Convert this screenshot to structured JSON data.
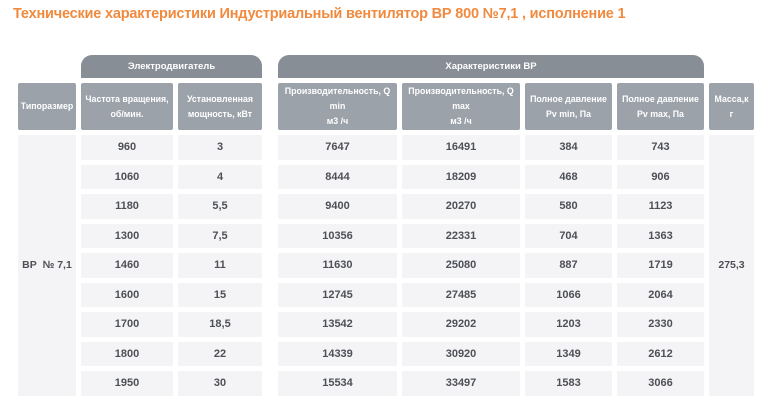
{
  "title": "Технические характеристики Индустриальный вентилятор ВР 800 №7,1 , исполнение 1",
  "colors": {
    "accent": "#f18a3e",
    "page_bg": "#ffffff",
    "group_header_bg": "#878e95",
    "column_header_bg": "#9ba2aa",
    "cell_bg": "#f4f4f6",
    "cell_text": "#4d5056"
  },
  "table": {
    "group_headers": {
      "electro": "Электродвигатель",
      "vr": "Характеристики ВР"
    },
    "column_headers": {
      "typosize": "Типоразмер",
      "freq": [
        "Частота вращения,",
        "об/мин."
      ],
      "power": [
        "Установленная",
        "мощность, кВт"
      ],
      "qmin": [
        "Производительность, Q min",
        "м3 /ч"
      ],
      "qmax": [
        "Производительность, Q max",
        "м3 /ч"
      ],
      "pvmin": [
        "Полное давление",
        "Pv min, Па"
      ],
      "pvmax": [
        "Полное давление",
        "Pv max, Па"
      ],
      "mass": [
        "Масса,к",
        "г"
      ]
    },
    "typosize_value": "ВР  № 7,1",
    "mass_value": "275,3",
    "rows": [
      {
        "cells": [
          "960",
          "3",
          "7647",
          "16491",
          "384",
          "743"
        ]
      },
      {
        "cells": [
          "1060",
          "4",
          "8444",
          "18209",
          "468",
          "906"
        ]
      },
      {
        "cells": [
          "1180",
          "5,5",
          "9400",
          "20270",
          "580",
          "1123"
        ]
      },
      {
        "cells": [
          "1300",
          "7,5",
          "10356",
          "22331",
          "704",
          "1363"
        ]
      },
      {
        "cells": [
          "1460",
          "11",
          "11630",
          "25080",
          "887",
          "1719"
        ]
      },
      {
        "cells": [
          "1600",
          "15",
          "12745",
          "27485",
          "1066",
          "2064"
        ]
      },
      {
        "cells": [
          "1700",
          "18,5",
          "13542",
          "29202",
          "1203",
          "2330"
        ]
      },
      {
        "cells": [
          "1800",
          "22",
          "14339",
          "30920",
          "1349",
          "2612"
        ]
      },
      {
        "cells": [
          "1950",
          "30",
          "15534",
          "33497",
          "1583",
          "3066"
        ]
      }
    ]
  }
}
